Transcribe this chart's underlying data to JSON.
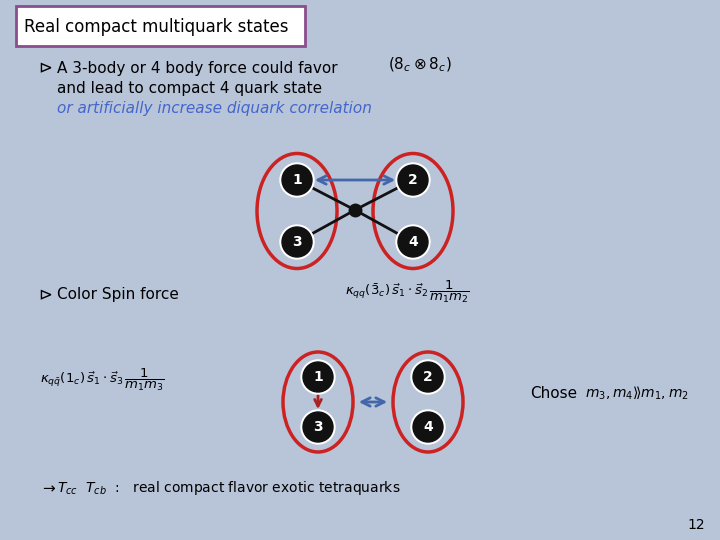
{
  "background_color": "#b8c4d8",
  "title_box_text": "Real compact multiquark states",
  "title_box_color": "#ffffff",
  "title_box_border": "#8b4d8b",
  "bullet1_line1": "A 3-body or 4 body force could favor",
  "bullet1_line2": "and lead to compact 4 quark state",
  "bullet1_line3": "or artificially increase diquark correlation",
  "bullet1_line3_color": "#4466cc",
  "bullet2_text": "Color Spin force",
  "page_number": "12",
  "node_bg": "#111111",
  "node_fg": "#ffffff",
  "ellipse_color": "#cc2222",
  "arrow_color_blue": "#4466aa",
  "arrow_color_red": "#aa2222",
  "line_color": "#111111"
}
